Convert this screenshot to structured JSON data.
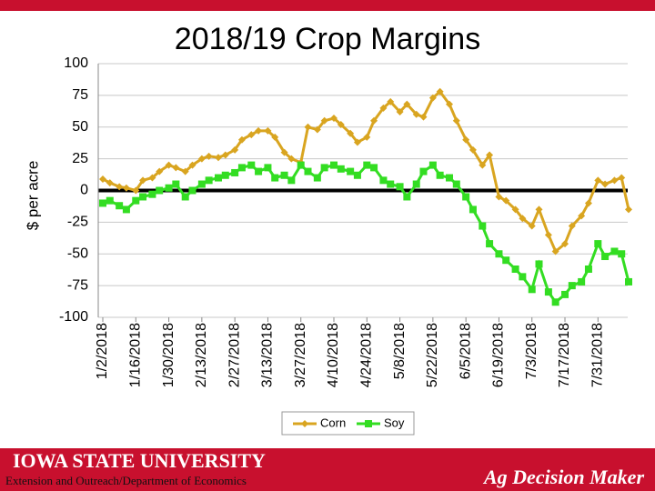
{
  "chart_data": {
    "type": "line",
    "title": "2018/19 Crop Margins",
    "y_label": "$ per acre",
    "x": [
      "1/2/2018",
      "1/5/2018",
      "1/9/2018",
      "1/12/2018",
      "1/16/2018",
      "1/19/2018",
      "1/23/2018",
      "1/26/2018",
      "1/30/2018",
      "2/2/2018",
      "2/6/2018",
      "2/9/2018",
      "2/13/2018",
      "2/16/2018",
      "2/20/2018",
      "2/23/2018",
      "2/27/2018",
      "3/2/2018",
      "3/6/2018",
      "3/9/2018",
      "3/13/2018",
      "3/16/2018",
      "3/20/2018",
      "3/23/2018",
      "3/27/2018",
      "3/30/2018",
      "4/3/2018",
      "4/6/2018",
      "4/10/2018",
      "4/13/2018",
      "4/17/2018",
      "4/20/2018",
      "4/24/2018",
      "4/27/2018",
      "5/1/2018",
      "5/4/2018",
      "5/8/2018",
      "5/11/2018",
      "5/15/2018",
      "5/18/2018",
      "5/22/2018",
      "5/25/2018",
      "5/29/2018",
      "6/1/2018",
      "6/5/2018",
      "6/8/2018",
      "6/12/2018",
      "6/15/2018",
      "6/19/2018",
      "6/22/2018",
      "6/26/2018",
      "6/29/2018",
      "7/3/2018",
      "7/6/2018",
      "7/10/2018",
      "7/13/2018",
      "7/17/2018",
      "7/20/2018",
      "7/24/2018",
      "7/27/2018",
      "7/31/2018",
      "8/3/2018",
      "8/7/2018",
      "8/10/2018",
      "8/13/2018"
    ],
    "series": [
      {
        "name": "Corn",
        "color": "#d9a520",
        "marker": "diamond",
        "values": [
          9,
          6,
          3,
          2,
          0,
          8,
          10,
          15,
          20,
          18,
          15,
          20,
          25,
          27,
          26,
          28,
          32,
          40,
          44,
          47,
          47,
          42,
          30,
          25,
          22,
          50,
          48,
          55,
          57,
          52,
          45,
          38,
          42,
          55,
          65,
          70,
          62,
          68,
          60,
          58,
          73,
          78,
          68,
          55,
          40,
          32,
          20,
          28,
          -5,
          -8,
          -15,
          -22,
          -28,
          -15,
          -35,
          -48,
          -42,
          -28,
          -20,
          -10,
          8,
          5,
          8,
          10,
          -15
        ]
      },
      {
        "name": "Soy",
        "color": "#33dd22",
        "marker": "square",
        "values": [
          -10,
          -8,
          -12,
          -15,
          -8,
          -5,
          -3,
          0,
          2,
          5,
          -5,
          0,
          5,
          8,
          10,
          12,
          14,
          18,
          20,
          15,
          18,
          10,
          12,
          8,
          20,
          15,
          10,
          18,
          20,
          17,
          15,
          12,
          20,
          18,
          8,
          5,
          3,
          -5,
          5,
          15,
          20,
          12,
          10,
          5,
          -5,
          -15,
          -28,
          -42,
          -50,
          -55,
          -62,
          -68,
          -78,
          -58,
          -80,
          -88,
          -82,
          -75,
          -72,
          -62,
          -42,
          -52,
          -48,
          -50,
          -72
        ]
      }
    ],
    "xlim": [
      "1/2/2018",
      "8/13/2018"
    ],
    "xticks": [
      "1/2/2018",
      "1/16/2018",
      "1/30/2018",
      "2/13/2018",
      "2/27/2018",
      "3/13/2018",
      "3/27/2018",
      "4/10/2018",
      "4/24/2018",
      "5/8/2018",
      "5/22/2018",
      "6/5/2018",
      "6/19/2018",
      "7/3/2018",
      "7/17/2018",
      "7/31/2018"
    ],
    "ylim": [
      -100,
      100
    ],
    "yticks": [
      100,
      75,
      50,
      25,
      0,
      -25,
      -50,
      -75,
      -100
    ],
    "grid": true,
    "legend": "bottom"
  },
  "footer": {
    "university": "IOWA STATE UNIVERSITY",
    "department": "Extension and Outreach/Department of Economics",
    "brand": "Ag Decision Maker"
  }
}
